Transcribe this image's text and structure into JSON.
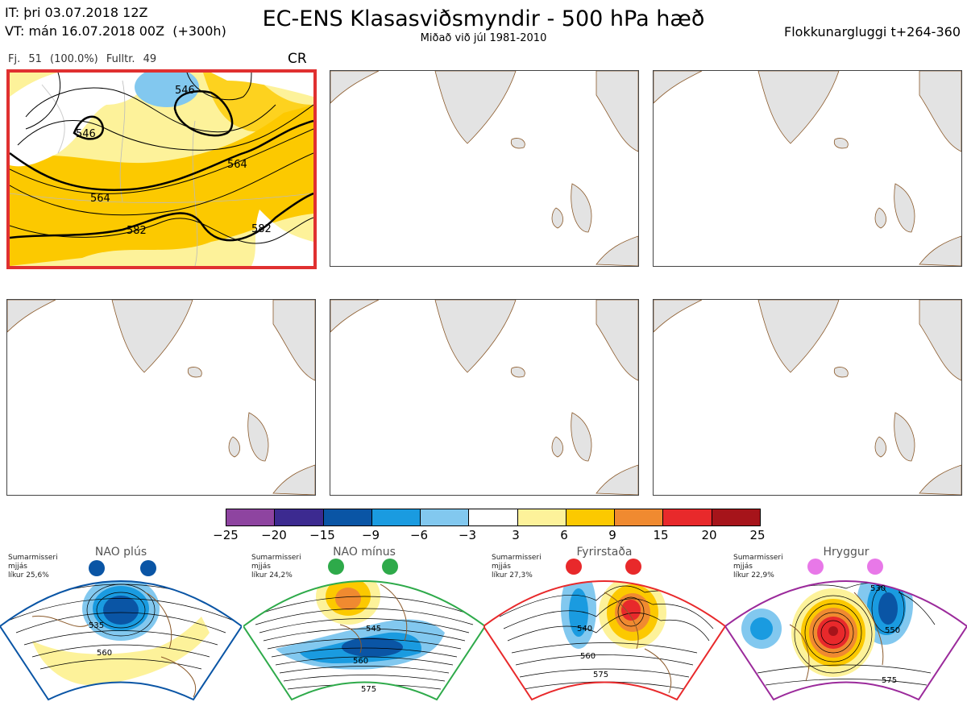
{
  "header": {
    "it_line": "IT: þri 03.07.2018 12Z",
    "vt_line": "VT: mán 16.07.2018 00Z  (+300h)",
    "title": "EC-ENS Klasasviðsmyndir - 500 hPa hæð",
    "subtitle": "Miðað við júl 1981-2010",
    "window": "Flokkunargluggi t+264-360"
  },
  "cluster": {
    "members": "Fj. 51 (100.0%)",
    "full": "Fulltr. 49",
    "code": "CR",
    "contour_labels": [
      "546",
      "546",
      "564",
      "564",
      "582",
      "582"
    ]
  },
  "colorbar": {
    "colors": [
      "#8e44a0",
      "#3c2a90",
      "#0a55a5",
      "#1a9be0",
      "#82c8ef",
      "#ffffff",
      "#fdf29a",
      "#fcc900",
      "#f08a30",
      "#e8292b",
      "#a6141a"
    ],
    "ticks": [
      "−25",
      "−20",
      "−15",
      "−9",
      "−6",
      "−3",
      "3",
      "6",
      "9",
      "15",
      "20",
      "25"
    ]
  },
  "regimes": [
    {
      "name": "NAO plús",
      "season": "Sumarmisseri",
      "word": "mjjás",
      "prob": "líkur 25,6%",
      "color": "#0a55a5",
      "labels": [
        "535",
        "560"
      ]
    },
    {
      "name": "NAO mínus",
      "season": "Sumarmisseri",
      "word": "mjjás",
      "prob": "líkur 24,2%",
      "color": "#2eaa4a",
      "labels": [
        "545",
        "560",
        "575"
      ]
    },
    {
      "name": "Fyrirstaða",
      "season": "Sumarmisseri",
      "word": "mjjás",
      "prob": "líkur 27,3%",
      "color": "#e8292b",
      "labels": [
        "540",
        "560",
        "575"
      ]
    },
    {
      "name": "Hryggur",
      "season": "Sumarmisseri",
      "word": "mjjás",
      "prob": "líkur 22,9%",
      "color": "#9b2a9b",
      "labels": [
        "530",
        "550",
        "575"
      ]
    }
  ]
}
